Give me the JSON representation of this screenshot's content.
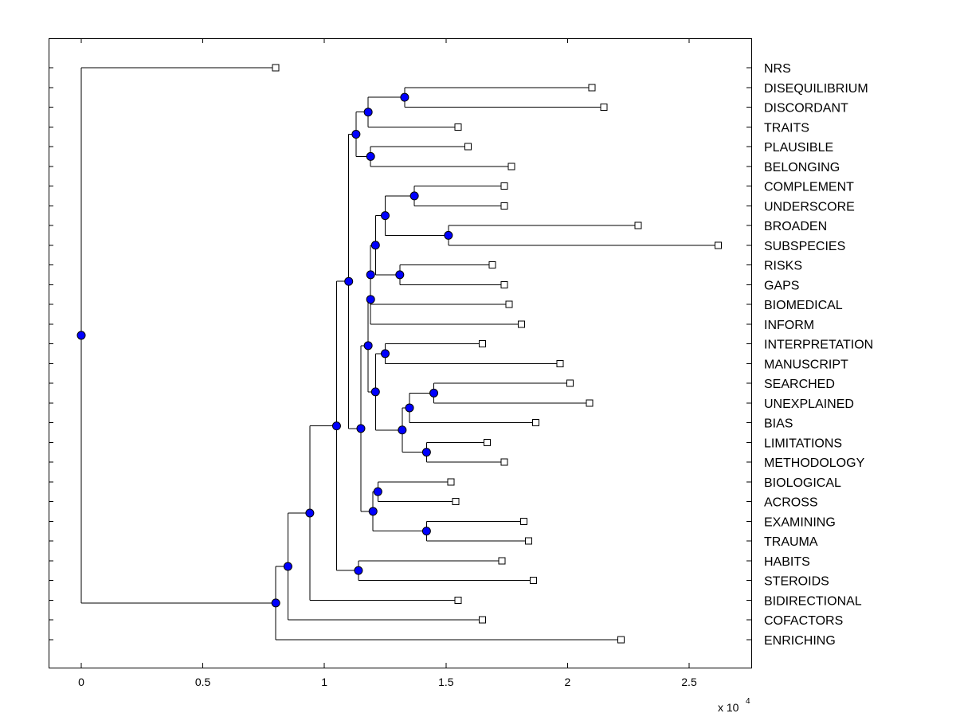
{
  "chart_data": {
    "type": "dendrogram",
    "title": "",
    "xlabel": "",
    "ylabel": "",
    "xlim": [
      -1400,
      27500
    ],
    "xticks": [
      0,
      5000,
      10000,
      15000,
      20000,
      25000
    ],
    "xtick_labels": [
      "0",
      "0.5",
      "1",
      "1.5",
      "2",
      "2.5"
    ],
    "x_multiplier": {
      "text": "x 10",
      "exponent": "4"
    },
    "colors": {
      "internal_node": "#0000ff",
      "leaf": "#ffffff",
      "line": "#000000"
    },
    "leaves": [
      {
        "label": "NRS",
        "x": 8000
      },
      {
        "label": "DISEQUILIBRIUM",
        "x": 21000
      },
      {
        "label": "DISCORDANT",
        "x": 21500
      },
      {
        "label": "TRAITS",
        "x": 15500
      },
      {
        "label": "PLAUSIBLE",
        "x": 15900
      },
      {
        "label": "BELONGING",
        "x": 17700
      },
      {
        "label": "COMPLEMENT",
        "x": 17400
      },
      {
        "label": "UNDERSCORE",
        "x": 17400
      },
      {
        "label": "BROADEN",
        "x": 22900
      },
      {
        "label": "SUBSPECIES",
        "x": 26200
      },
      {
        "label": "RISKS",
        "x": 16900
      },
      {
        "label": "GAPS",
        "x": 17400
      },
      {
        "label": "BIOMEDICAL",
        "x": 17600
      },
      {
        "label": "INFORM",
        "x": 18100
      },
      {
        "label": "INTERPRETATION",
        "x": 16500
      },
      {
        "label": "MANUSCRIPT",
        "x": 19700
      },
      {
        "label": "SEARCHED",
        "x": 20100
      },
      {
        "label": "UNEXPLAINED",
        "x": 20900
      },
      {
        "label": "BIAS",
        "x": 18700
      },
      {
        "label": "LIMITATIONS",
        "x": 16700
      },
      {
        "label": "METHODOLOGY",
        "x": 17400
      },
      {
        "label": "BIOLOGICAL",
        "x": 15200
      },
      {
        "label": "ACROSS",
        "x": 15400
      },
      {
        "label": "EXAMINING",
        "x": 18200
      },
      {
        "label": "TRAUMA",
        "x": 18400
      },
      {
        "label": "HABITS",
        "x": 17300
      },
      {
        "label": "STEROIDS",
        "x": 18600
      },
      {
        "label": "BIDIRECTIONAL",
        "x": 15500
      },
      {
        "label": "COFACTORS",
        "x": 16500
      },
      {
        "label": "ENRICHING",
        "x": 22200
      }
    ],
    "nodes": [
      {
        "x": 13300,
        "children": [
          "L1",
          "L2"
        ]
      },
      {
        "x": 11800,
        "children": [
          "N0",
          "L3"
        ]
      },
      {
        "x": 11900,
        "children": [
          "L4",
          "L5"
        ]
      },
      {
        "x": 11300,
        "children": [
          "N1",
          "N2"
        ]
      },
      {
        "x": 13700,
        "children": [
          "L6",
          "L7"
        ]
      },
      {
        "x": 15100,
        "children": [
          "L8",
          "L9"
        ]
      },
      {
        "x": 12500,
        "children": [
          "N4",
          "N5"
        ]
      },
      {
        "x": 13100,
        "children": [
          "L10",
          "L11"
        ]
      },
      {
        "x": 12100,
        "children": [
          "N6",
          "N7"
        ]
      },
      {
        "x": 11900,
        "children": [
          "N8",
          "L12"
        ]
      },
      {
        "x": 11900,
        "children": [
          "N9",
          "L13"
        ]
      },
      {
        "x": 12500,
        "children": [
          "L14",
          "L15"
        ]
      },
      {
        "x": 14500,
        "children": [
          "L16",
          "L17"
        ]
      },
      {
        "x": 13500,
        "children": [
          "N12",
          "L18"
        ]
      },
      {
        "x": 14200,
        "children": [
          "L19",
          "L20"
        ]
      },
      {
        "x": 13200,
        "children": [
          "N13",
          "N14"
        ]
      },
      {
        "x": 12100,
        "children": [
          "N11",
          "N15"
        ]
      },
      {
        "x": 11800,
        "children": [
          "N16",
          "N10"
        ]
      },
      {
        "x": 12200,
        "children": [
          "L21",
          "L22"
        ]
      },
      {
        "x": 14200,
        "children": [
          "L23",
          "L24"
        ]
      },
      {
        "x": 12000,
        "children": [
          "N18",
          "N19"
        ]
      },
      {
        "x": 11500,
        "children": [
          "N17",
          "N20"
        ]
      },
      {
        "x": 11000,
        "children": [
          "N3",
          "N21"
        ]
      },
      {
        "x": 11400,
        "children": [
          "L25",
          "L26"
        ]
      },
      {
        "x": 10500,
        "children": [
          "N22",
          "N23"
        ]
      },
      {
        "x": 9400,
        "children": [
          "N24",
          "L27"
        ]
      },
      {
        "x": 8500,
        "children": [
          "N25",
          "L28"
        ]
      },
      {
        "x": 8000,
        "children": [
          "N26",
          "L29"
        ]
      },
      {
        "x": 0,
        "children": [
          "L0",
          "N27"
        ]
      }
    ]
  }
}
